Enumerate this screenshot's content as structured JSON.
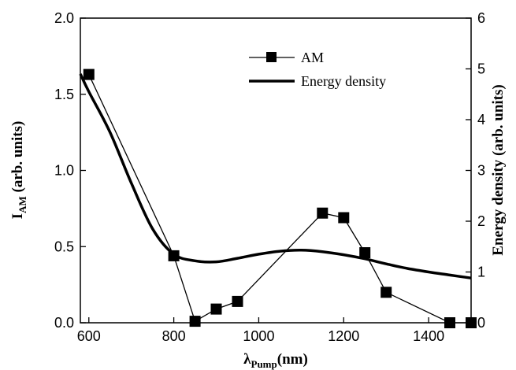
{
  "chart_data": {
    "type": "line",
    "x_axis": {
      "label_main": "λ",
      "label_sub": "Pump",
      "label_unit": "(nm)",
      "range": [
        580,
        1500
      ],
      "ticks": [
        600,
        800,
        1000,
        1200,
        1400
      ],
      "tick_labels": [
        "600",
        "800",
        "1000",
        "1200",
        "1400"
      ]
    },
    "y_left": {
      "label_main": "I",
      "label_sub": "AM",
      "label_unit": " (arb. units)",
      "range": [
        0,
        2.0
      ],
      "ticks": [
        0,
        0.5,
        1.0,
        1.5,
        2.0
      ],
      "tick_labels": [
        "0.0",
        "0.5",
        "1.0",
        "1.5",
        "2.0"
      ]
    },
    "y_right": {
      "label": "Energy density (arb. units)",
      "range": [
        0,
        6
      ],
      "ticks": [
        0,
        1,
        2,
        3,
        4,
        5,
        6
      ],
      "tick_labels": [
        "0",
        "1",
        "2",
        "3",
        "4",
        "5",
        "6"
      ]
    },
    "legend_position": "top-right",
    "grid": false,
    "series": [
      {
        "name": "AM",
        "axis": "left",
        "style": "line-square-markers",
        "color": "#000000",
        "x": [
          600,
          800,
          850,
          900,
          950,
          1150,
          1200,
          1250,
          1300,
          1450,
          1500
        ],
        "y": [
          1.63,
          0.44,
          0.01,
          0.09,
          0.14,
          0.72,
          0.69,
          0.46,
          0.2,
          0.0,
          0.0
        ]
      },
      {
        "name": "Energy density",
        "axis": "right",
        "style": "thick-line",
        "color": "#000000",
        "x": [
          580,
          600,
          650,
          700,
          750,
          800,
          850,
          900,
          950,
          1000,
          1050,
          1100,
          1150,
          1200,
          1250,
          1300,
          1350,
          1400,
          1450,
          1500
        ],
        "y": [
          4.9,
          4.55,
          3.75,
          2.75,
          1.85,
          1.35,
          1.22,
          1.2,
          1.27,
          1.35,
          1.41,
          1.43,
          1.4,
          1.34,
          1.26,
          1.16,
          1.07,
          1.0,
          0.94,
          0.88
        ]
      }
    ]
  }
}
